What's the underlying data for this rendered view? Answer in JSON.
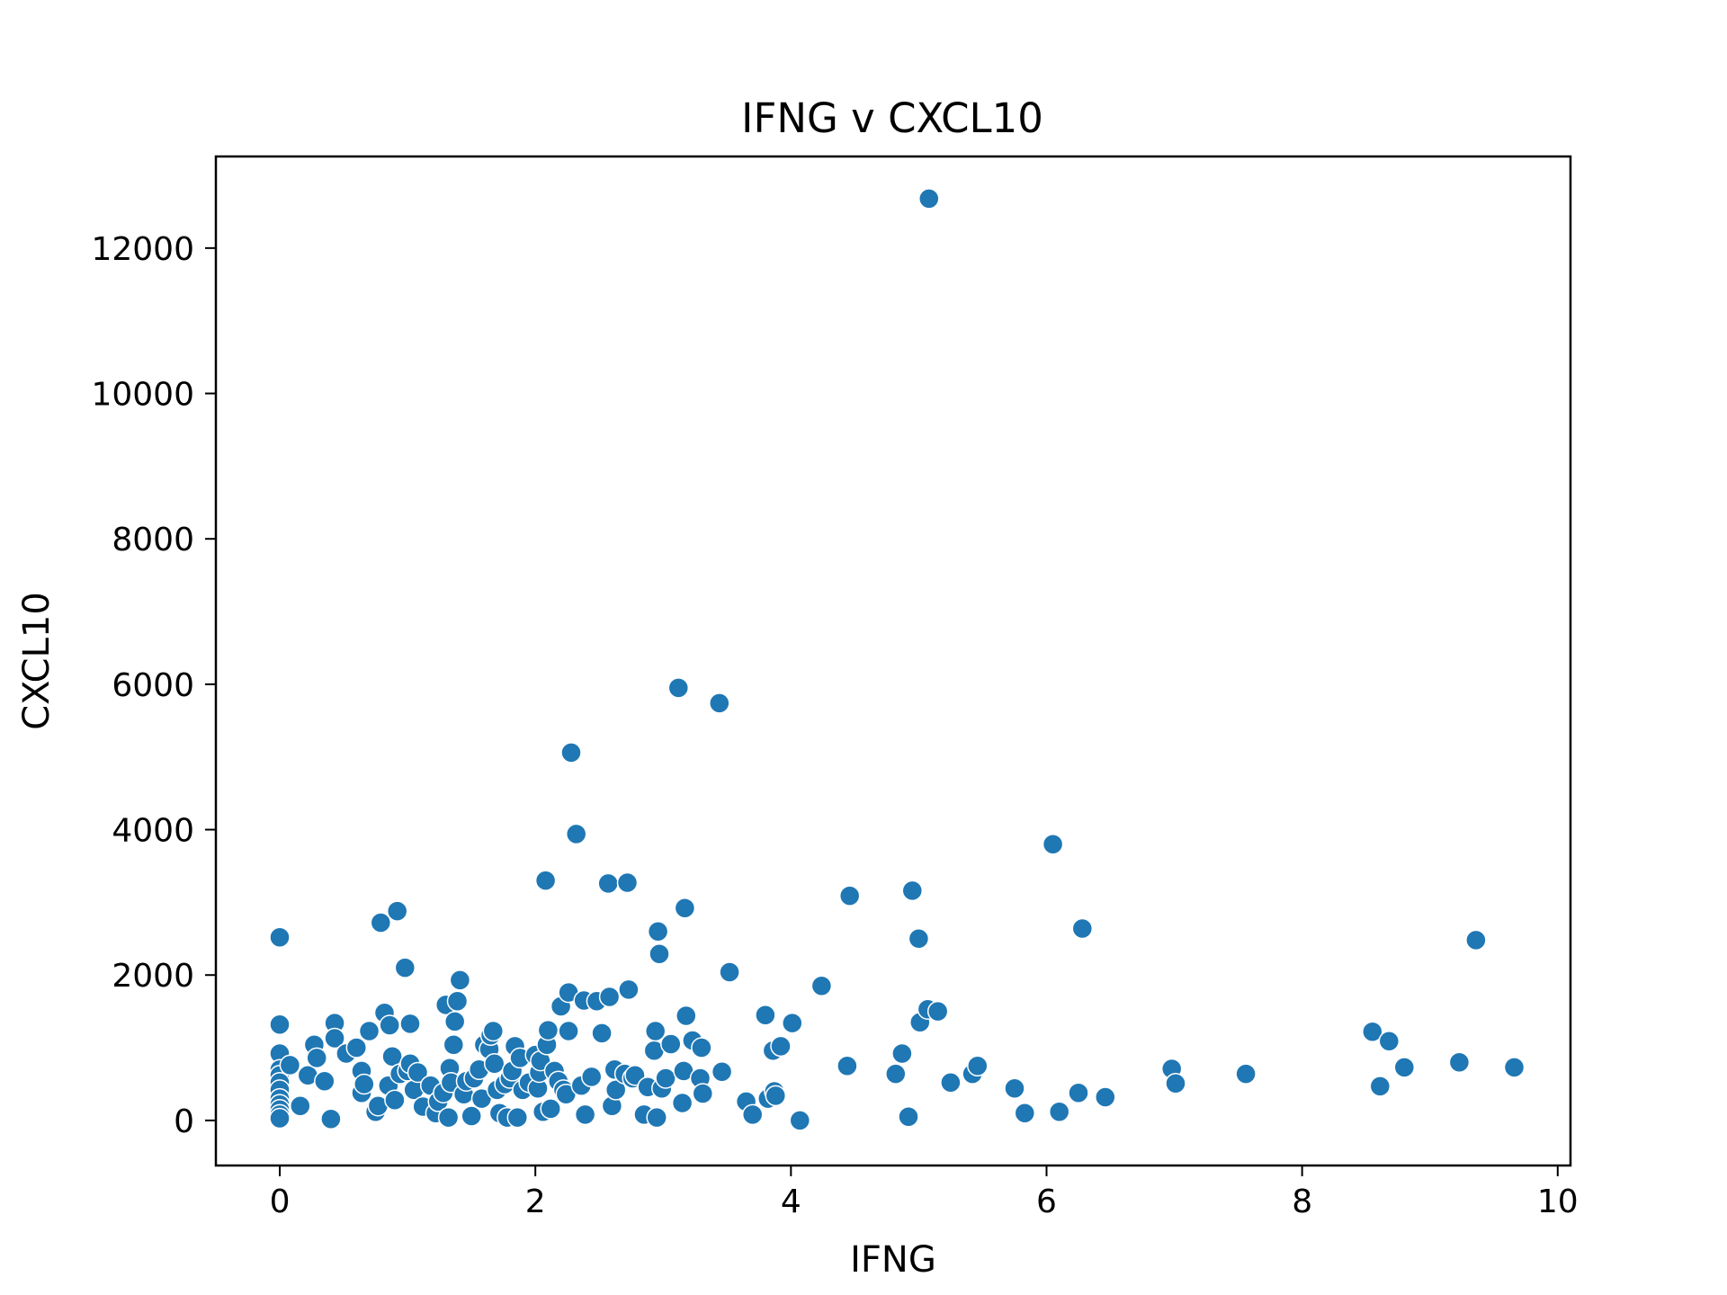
{
  "colors": {
    "point": "#1f77b4",
    "point_edge": "#ffffff",
    "axes": "#000000",
    "background": "#ffffff"
  },
  "chart_data": {
    "type": "scatter",
    "title": "IFNG v CXCL10",
    "xlabel": "IFNG",
    "ylabel": "CXCL10",
    "xlim": [
      -0.5,
      10.1
    ],
    "ylim": [
      -620,
      13260
    ],
    "xticks": [
      0,
      2,
      4,
      6,
      8,
      10
    ],
    "xtick_labels": [
      "0",
      "2",
      "4",
      "6",
      "8",
      "10"
    ],
    "yticks": [
      0,
      2000,
      4000,
      6000,
      8000,
      10000,
      12000
    ],
    "ytick_labels": [
      "0",
      "2000",
      "4000",
      "6000",
      "8000",
      "10000",
      "12000"
    ],
    "grid": false,
    "legend": "none",
    "series": [
      {
        "points": [
          [
            0,
            2520
          ],
          [
            0,
            1320
          ],
          [
            0,
            920
          ],
          [
            0,
            700
          ],
          [
            0,
            620
          ],
          [
            0,
            520
          ],
          [
            0,
            420
          ],
          [
            0,
            300
          ],
          [
            0,
            220
          ],
          [
            0,
            150
          ],
          [
            0,
            80
          ],
          [
            0,
            30
          ],
          [
            0.08,
            760
          ],
          [
            0.16,
            200
          ],
          [
            0.22,
            620
          ],
          [
            0.27,
            1040
          ],
          [
            0.29,
            860
          ],
          [
            0.35,
            540
          ],
          [
            0.4,
            20
          ],
          [
            0.43,
            1340
          ],
          [
            0.43,
            1130
          ],
          [
            0.52,
            920
          ],
          [
            0.6,
            1000
          ],
          [
            0.64,
            680
          ],
          [
            0.64,
            380
          ],
          [
            0.66,
            500
          ],
          [
            0.7,
            1230
          ],
          [
            0.75,
            120
          ],
          [
            0.77,
            200
          ],
          [
            0.79,
            2720
          ],
          [
            0.82,
            1480
          ],
          [
            0.85,
            480
          ],
          [
            0.86,
            1310
          ],
          [
            0.88,
            880
          ],
          [
            0.9,
            280
          ],
          [
            0.92,
            2880
          ],
          [
            0.94,
            640
          ],
          [
            0.98,
            2100
          ],
          [
            1.0,
            680
          ],
          [
            1.02,
            1330
          ],
          [
            1.02,
            780
          ],
          [
            1.05,
            420
          ],
          [
            1.08,
            660
          ],
          [
            1.12,
            190
          ],
          [
            1.18,
            480
          ],
          [
            1.22,
            100
          ],
          [
            1.24,
            260
          ],
          [
            1.28,
            380
          ],
          [
            1.3,
            1590
          ],
          [
            1.32,
            40
          ],
          [
            1.33,
            720
          ],
          [
            1.34,
            520
          ],
          [
            1.36,
            1040
          ],
          [
            1.37,
            1360
          ],
          [
            1.39,
            1640
          ],
          [
            1.41,
            1930
          ],
          [
            1.44,
            360
          ],
          [
            1.46,
            540
          ],
          [
            1.5,
            60
          ],
          [
            1.52,
            580
          ],
          [
            1.56,
            700
          ],
          [
            1.58,
            300
          ],
          [
            1.6,
            1040
          ],
          [
            1.64,
            980
          ],
          [
            1.65,
            1170
          ],
          [
            1.67,
            1230
          ],
          [
            1.68,
            780
          ],
          [
            1.7,
            420
          ],
          [
            1.72,
            100
          ],
          [
            1.76,
            500
          ],
          [
            1.78,
            40
          ],
          [
            1.8,
            580
          ],
          [
            1.82,
            680
          ],
          [
            1.84,
            1020
          ],
          [
            1.86,
            40
          ],
          [
            1.88,
            860
          ],
          [
            1.9,
            420
          ],
          [
            1.95,
            520
          ],
          [
            2.0,
            900
          ],
          [
            2.02,
            440
          ],
          [
            2.03,
            660
          ],
          [
            2.04,
            820
          ],
          [
            2.06,
            120
          ],
          [
            2.08,
            3300
          ],
          [
            2.09,
            1040
          ],
          [
            2.1,
            1240
          ],
          [
            2.12,
            160
          ],
          [
            2.15,
            680
          ],
          [
            2.18,
            540
          ],
          [
            2.2,
            1570
          ],
          [
            2.22,
            420
          ],
          [
            2.24,
            360
          ],
          [
            2.26,
            1760
          ],
          [
            2.26,
            1230
          ],
          [
            2.28,
            5060
          ],
          [
            2.32,
            3940
          ],
          [
            2.36,
            480
          ],
          [
            2.38,
            1650
          ],
          [
            2.39,
            80
          ],
          [
            2.44,
            600
          ],
          [
            2.48,
            1640
          ],
          [
            2.52,
            1200
          ],
          [
            2.57,
            3260
          ],
          [
            2.58,
            1700
          ],
          [
            2.6,
            200
          ],
          [
            2.62,
            700
          ],
          [
            2.63,
            420
          ],
          [
            2.7,
            640
          ],
          [
            2.72,
            3270
          ],
          [
            2.73,
            1800
          ],
          [
            2.76,
            580
          ],
          [
            2.78,
            620
          ],
          [
            2.85,
            80
          ],
          [
            2.88,
            460
          ],
          [
            2.93,
            960
          ],
          [
            2.94,
            1230
          ],
          [
            2.95,
            40
          ],
          [
            2.96,
            2600
          ],
          [
            2.97,
            2290
          ],
          [
            2.99,
            440
          ],
          [
            3.02,
            580
          ],
          [
            3.06,
            1050
          ],
          [
            3.12,
            5950
          ],
          [
            3.15,
            240
          ],
          [
            3.16,
            680
          ],
          [
            3.17,
            2920
          ],
          [
            3.18,
            1440
          ],
          [
            3.23,
            1100
          ],
          [
            3.29,
            580
          ],
          [
            3.3,
            1000
          ],
          [
            3.31,
            370
          ],
          [
            3.44,
            5740
          ],
          [
            3.46,
            670
          ],
          [
            3.52,
            2040
          ],
          [
            3.65,
            260
          ],
          [
            3.7,
            80
          ],
          [
            3.8,
            1450
          ],
          [
            3.82,
            300
          ],
          [
            3.86,
            960
          ],
          [
            3.87,
            400
          ],
          [
            3.88,
            340
          ],
          [
            3.92,
            1020
          ],
          [
            4.01,
            1340
          ],
          [
            4.07,
            0
          ],
          [
            4.24,
            1850
          ],
          [
            4.44,
            750
          ],
          [
            4.46,
            3090
          ],
          [
            4.82,
            640
          ],
          [
            4.87,
            920
          ],
          [
            4.92,
            50
          ],
          [
            4.95,
            3160
          ],
          [
            5.0,
            2500
          ],
          [
            5.01,
            1350
          ],
          [
            5.07,
            1530
          ],
          [
            5.08,
            12680
          ],
          [
            5.15,
            1500
          ],
          [
            5.25,
            520
          ],
          [
            5.42,
            640
          ],
          [
            5.46,
            750
          ],
          [
            5.75,
            440
          ],
          [
            5.83,
            100
          ],
          [
            6.05,
            3800
          ],
          [
            6.1,
            120
          ],
          [
            6.25,
            380
          ],
          [
            6.28,
            2640
          ],
          [
            6.46,
            320
          ],
          [
            6.98,
            710
          ],
          [
            7.01,
            510
          ],
          [
            7.56,
            640
          ],
          [
            8.55,
            1220
          ],
          [
            8.61,
            470
          ],
          [
            8.68,
            1090
          ],
          [
            8.8,
            730
          ],
          [
            9.23,
            800
          ],
          [
            9.36,
            2480
          ],
          [
            9.66,
            730
          ]
        ]
      }
    ]
  }
}
